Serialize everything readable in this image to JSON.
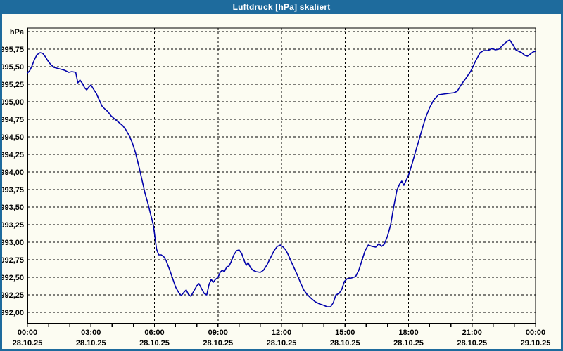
{
  "window": {
    "title": "Luftdruck [hPa] skaliert"
  },
  "colors": {
    "frame": "#1E6B9D",
    "title_text": "#FFFFFF",
    "plot_background": "#FCFCF2",
    "grid": "#000000",
    "label_text": "#000000",
    "curve": "#0000AA"
  },
  "chart_data": {
    "type": "line",
    "title": "Luftdruck [hPa] skaliert",
    "xlabel": "",
    "ylabel": "hPa",
    "grid": true,
    "legend_position": "none",
    "xlim": [
      0,
      24
    ],
    "ylim": [
      991.84,
      996.05
    ],
    "x_minor_step_hours": 1,
    "y_ticks": [
      {
        "value": 996.0,
        "label": ""
      },
      {
        "value": 995.75,
        "label": "995,75"
      },
      {
        "value": 995.5,
        "label": "995,50"
      },
      {
        "value": 995.25,
        "label": "995,25"
      },
      {
        "value": 995.0,
        "label": "995,00"
      },
      {
        "value": 994.75,
        "label": "994,75"
      },
      {
        "value": 994.5,
        "label": "994,50"
      },
      {
        "value": 994.25,
        "label": "994,25"
      },
      {
        "value": 994.0,
        "label": "994,00"
      },
      {
        "value": 993.75,
        "label": "993,75"
      },
      {
        "value": 993.5,
        "label": "993,50"
      },
      {
        "value": 993.25,
        "label": "993,25"
      },
      {
        "value": 993.0,
        "label": "993,00"
      },
      {
        "value": 992.75,
        "label": "992,75"
      },
      {
        "value": 992.5,
        "label": "992,50"
      },
      {
        "value": 992.25,
        "label": "992,25"
      },
      {
        "value": 992.0,
        "label": "992,00"
      }
    ],
    "x_ticks": [
      {
        "h": 0,
        "time": "00:00",
        "date": "28.10.25"
      },
      {
        "h": 3,
        "time": "03:00",
        "date": "28.10.25"
      },
      {
        "h": 6,
        "time": "06:00",
        "date": "28.10.25"
      },
      {
        "h": 9,
        "time": "09:00",
        "date": "28.10.25"
      },
      {
        "h": 12,
        "time": "12:00",
        "date": "28.10.25"
      },
      {
        "h": 15,
        "time": "15:00",
        "date": "28.10.25"
      },
      {
        "h": 18,
        "time": "18:00",
        "date": "28.10.25"
      },
      {
        "h": 21,
        "time": "21:00",
        "date": "28.10.25"
      },
      {
        "h": 24,
        "time": "00:00",
        "date": "29.10.25"
      }
    ],
    "series": [
      {
        "name": "Luftdruck",
        "unit": "hPa",
        "color": "#0000AA",
        "points": [
          [
            0,
            995.41
          ],
          [
            0.1,
            995.44
          ],
          [
            0.2,
            995.5
          ],
          [
            0.33,
            995.6
          ],
          [
            0.45,
            995.67
          ],
          [
            0.6,
            995.7
          ],
          [
            0.72,
            995.69
          ],
          [
            0.85,
            995.64
          ],
          [
            0.95,
            995.59
          ],
          [
            1.1,
            995.53
          ],
          [
            1.25,
            995.49
          ],
          [
            1.5,
            995.47
          ],
          [
            1.75,
            995.45
          ],
          [
            1.95,
            995.42
          ],
          [
            2.1,
            995.43
          ],
          [
            2.28,
            995.42
          ],
          [
            2.38,
            995.27
          ],
          [
            2.48,
            995.31
          ],
          [
            2.6,
            995.26
          ],
          [
            2.7,
            995.2
          ],
          [
            2.8,
            995.17
          ],
          [
            2.9,
            995.21
          ],
          [
            3,
            995.24
          ],
          [
            3.12,
            995.18
          ],
          [
            3.25,
            995.12
          ],
          [
            3.4,
            995.02
          ],
          [
            3.52,
            994.94
          ],
          [
            3.65,
            994.9
          ],
          [
            3.8,
            994.86
          ],
          [
            3.95,
            994.8
          ],
          [
            4.1,
            994.76
          ],
          [
            4.3,
            994.71
          ],
          [
            4.5,
            994.66
          ],
          [
            4.65,
            994.6
          ],
          [
            4.8,
            994.52
          ],
          [
            4.95,
            994.42
          ],
          [
            5.1,
            994.28
          ],
          [
            5.25,
            994.1
          ],
          [
            5.4,
            993.9
          ],
          [
            5.55,
            993.7
          ],
          [
            5.7,
            993.54
          ],
          [
            5.85,
            993.36
          ],
          [
            5.95,
            993.24
          ],
          [
            6.02,
            993.08
          ],
          [
            6.1,
            992.9
          ],
          [
            6.2,
            992.82
          ],
          [
            6.32,
            992.82
          ],
          [
            6.45,
            992.79
          ],
          [
            6.55,
            992.74
          ],
          [
            6.7,
            992.62
          ],
          [
            6.85,
            992.49
          ],
          [
            7,
            992.36
          ],
          [
            7.15,
            992.28
          ],
          [
            7.27,
            992.24
          ],
          [
            7.4,
            992.29
          ],
          [
            7.5,
            992.32
          ],
          [
            7.62,
            992.25
          ],
          [
            7.72,
            992.23
          ],
          [
            7.85,
            992.3
          ],
          [
            8,
            992.38
          ],
          [
            8.1,
            992.41
          ],
          [
            8.22,
            992.34
          ],
          [
            8.35,
            992.27
          ],
          [
            8.47,
            992.25
          ],
          [
            8.58,
            992.4
          ],
          [
            8.68,
            992.47
          ],
          [
            8.78,
            992.43
          ],
          [
            8.88,
            992.47
          ],
          [
            9,
            992.5
          ],
          [
            9.1,
            992.57
          ],
          [
            9.2,
            992.6
          ],
          [
            9.3,
            992.58
          ],
          [
            9.42,
            992.65
          ],
          [
            9.52,
            992.66
          ],
          [
            9.62,
            992.72
          ],
          [
            9.75,
            992.82
          ],
          [
            9.88,
            992.88
          ],
          [
            10,
            992.89
          ],
          [
            10.12,
            992.84
          ],
          [
            10.22,
            992.75
          ],
          [
            10.33,
            992.67
          ],
          [
            10.42,
            992.71
          ],
          [
            10.53,
            992.64
          ],
          [
            10.65,
            992.6
          ],
          [
            10.8,
            992.58
          ],
          [
            11,
            992.57
          ],
          [
            11.15,
            992.6
          ],
          [
            11.32,
            992.68
          ],
          [
            11.5,
            992.79
          ],
          [
            11.65,
            992.88
          ],
          [
            11.8,
            992.94
          ],
          [
            11.95,
            992.96
          ],
          [
            12.08,
            992.93
          ],
          [
            12.2,
            992.89
          ],
          [
            12.32,
            992.82
          ],
          [
            12.45,
            992.73
          ],
          [
            12.6,
            992.63
          ],
          [
            12.75,
            992.53
          ],
          [
            12.9,
            992.42
          ],
          [
            13.05,
            992.32
          ],
          [
            13.2,
            992.26
          ],
          [
            13.4,
            992.2
          ],
          [
            13.6,
            992.15
          ],
          [
            13.8,
            992.12
          ],
          [
            14,
            992.1
          ],
          [
            14.15,
            992.08
          ],
          [
            14.32,
            992.08
          ],
          [
            14.45,
            992.14
          ],
          [
            14.57,
            992.25
          ],
          [
            14.72,
            992.27
          ],
          [
            14.85,
            992.33
          ],
          [
            14.97,
            992.44
          ],
          [
            15.1,
            992.48
          ],
          [
            15.3,
            992.49
          ],
          [
            15.5,
            992.51
          ],
          [
            15.65,
            992.6
          ],
          [
            15.8,
            992.74
          ],
          [
            15.95,
            992.88
          ],
          [
            16.1,
            992.96
          ],
          [
            16.28,
            992.94
          ],
          [
            16.45,
            992.93
          ],
          [
            16.6,
            992.98
          ],
          [
            16.72,
            992.94
          ],
          [
            16.85,
            992.97
          ],
          [
            17,
            993.08
          ],
          [
            17.15,
            993.24
          ],
          [
            17.3,
            993.5
          ],
          [
            17.45,
            993.74
          ],
          [
            17.58,
            993.83
          ],
          [
            17.68,
            993.87
          ],
          [
            17.78,
            993.81
          ],
          [
            17.9,
            993.89
          ],
          [
            18.03,
            993.98
          ],
          [
            18.2,
            994.15
          ],
          [
            18.35,
            994.31
          ],
          [
            18.5,
            994.46
          ],
          [
            18.65,
            994.62
          ],
          [
            18.8,
            994.77
          ],
          [
            19,
            994.92
          ],
          [
            19.2,
            995.03
          ],
          [
            19.42,
            995.1
          ],
          [
            19.65,
            995.11
          ],
          [
            19.9,
            995.12
          ],
          [
            20.15,
            995.13
          ],
          [
            20.3,
            995.15
          ],
          [
            20.5,
            995.25
          ],
          [
            20.7,
            995.33
          ],
          [
            20.95,
            995.44
          ],
          [
            21.18,
            995.59
          ],
          [
            21.38,
            995.7
          ],
          [
            21.55,
            995.73
          ],
          [
            21.75,
            995.73
          ],
          [
            21.95,
            995.76
          ],
          [
            22.1,
            995.74
          ],
          [
            22.27,
            995.75
          ],
          [
            22.5,
            995.82
          ],
          [
            22.65,
            995.86
          ],
          [
            22.78,
            995.88
          ],
          [
            22.94,
            995.81
          ],
          [
            23.07,
            995.74
          ],
          [
            23.2,
            995.72
          ],
          [
            23.35,
            995.7
          ],
          [
            23.5,
            995.66
          ],
          [
            23.62,
            995.65
          ],
          [
            23.75,
            995.68
          ],
          [
            23.88,
            995.71
          ],
          [
            24,
            995.72
          ]
        ]
      }
    ]
  }
}
